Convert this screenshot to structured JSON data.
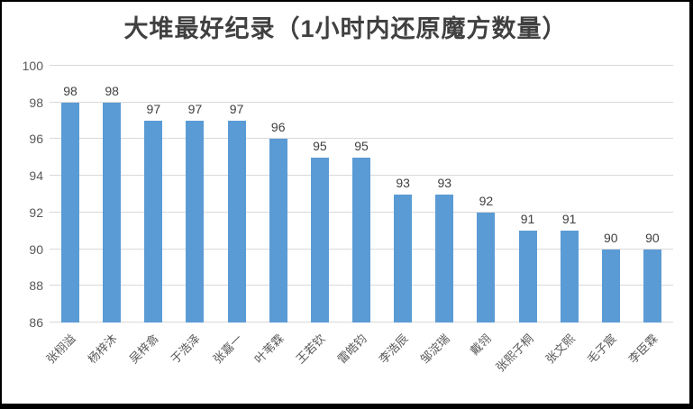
{
  "frame": {
    "background": "#ffffff",
    "border_color": "#000000"
  },
  "chart_data": {
    "type": "bar",
    "title": "大堆最好纪录（1小时内还原魔方数量）",
    "categories": [
      "张栩溢",
      "杨梓沐",
      "吴梓翕",
      "于浩泽",
      "张嘉一",
      "叶苇霖",
      "王若钦",
      "雷皓钧",
      "李浩辰",
      "邹淀瑞",
      "戴翎",
      "张熙子桐",
      "张文熙",
      "毛子宸",
      "李臣霖"
    ],
    "values": [
      98,
      98,
      97,
      97,
      97,
      96,
      95,
      95,
      93,
      93,
      92,
      91,
      91,
      90,
      90
    ],
    "data_labels": [
      98,
      98,
      97,
      97,
      97,
      96,
      95,
      95,
      93,
      93,
      92,
      91,
      91,
      90,
      90
    ],
    "xlabel": "",
    "ylabel": "",
    "ylim": [
      86,
      100
    ],
    "yticks": [
      86,
      88,
      90,
      92,
      94,
      96,
      98,
      100
    ],
    "grid": "horizontal",
    "legend": "none",
    "bar_color": "#5B9BD5",
    "gridline_color": "#D9D9D9",
    "title_color": "#404040",
    "value_label_color": "#404040",
    "tick_label_color": "#595959"
  }
}
